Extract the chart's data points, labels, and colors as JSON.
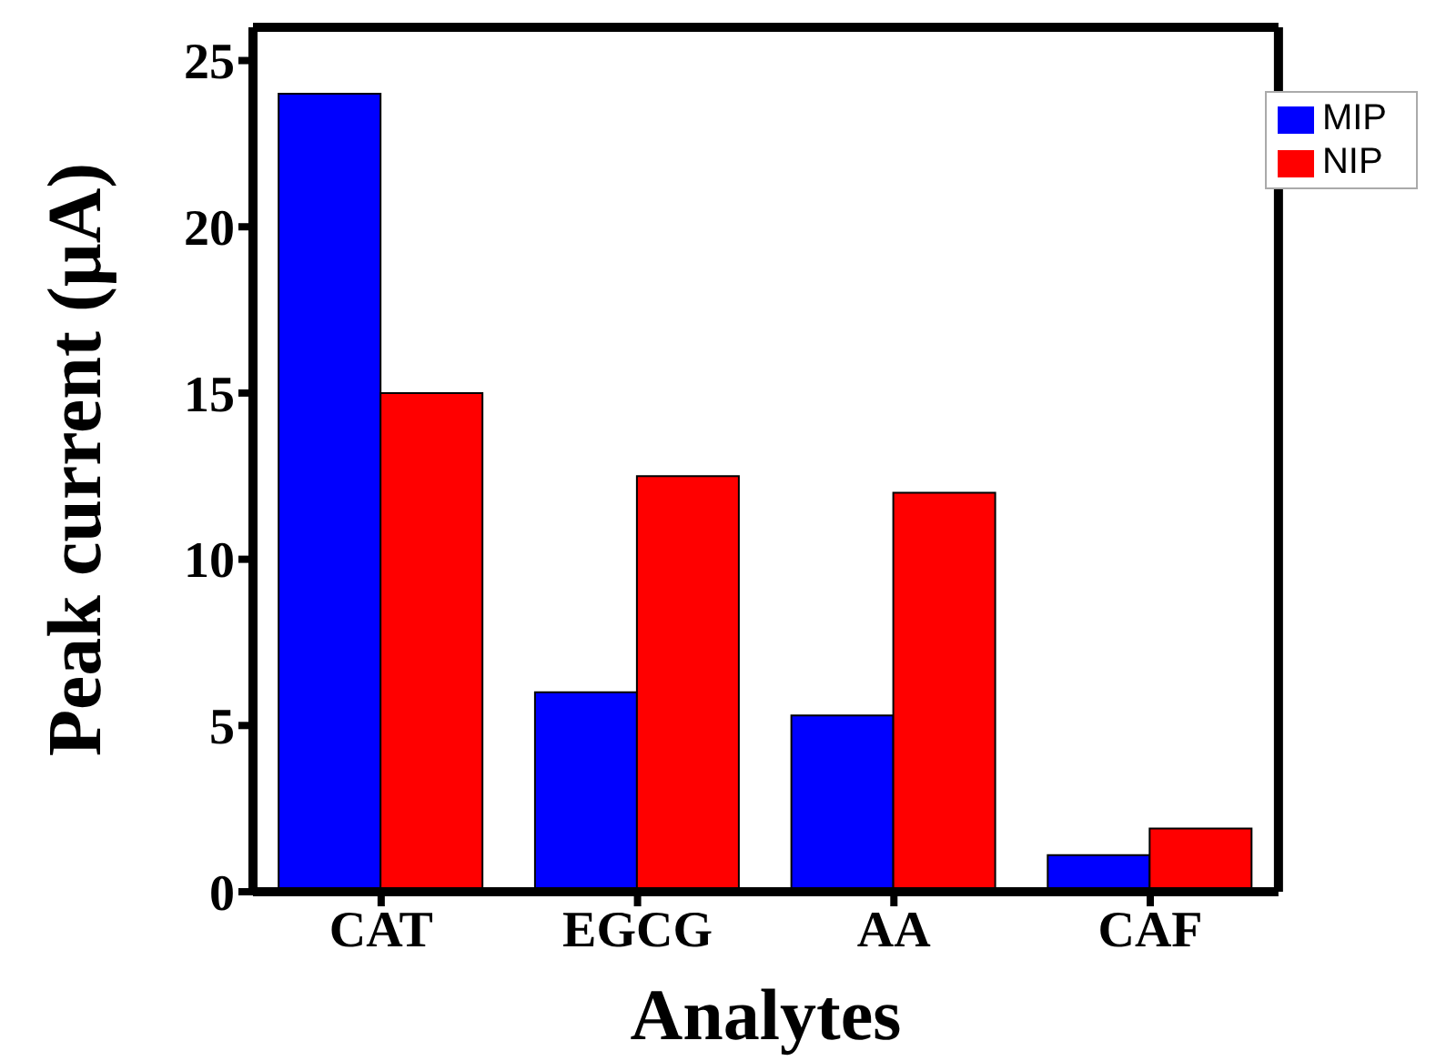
{
  "chart_data": {
    "type": "bar",
    "xlabel": "Analytes",
    "ylabel": "Peak current (μA)",
    "categories": [
      "CAT",
      "EGCG",
      "AA",
      "CAF"
    ],
    "series": [
      {
        "name": "MIP",
        "color": "#0000ff",
        "values": [
          24.0,
          6.0,
          5.3,
          1.1
        ]
      },
      {
        "name": "NIP",
        "color": "#ff0000",
        "values": [
          15.0,
          12.5,
          12.0,
          1.9
        ]
      }
    ],
    "ylim": [
      0,
      26
    ],
    "yticks": [
      0,
      5,
      10,
      15,
      20,
      25
    ],
    "legend": "top right"
  }
}
